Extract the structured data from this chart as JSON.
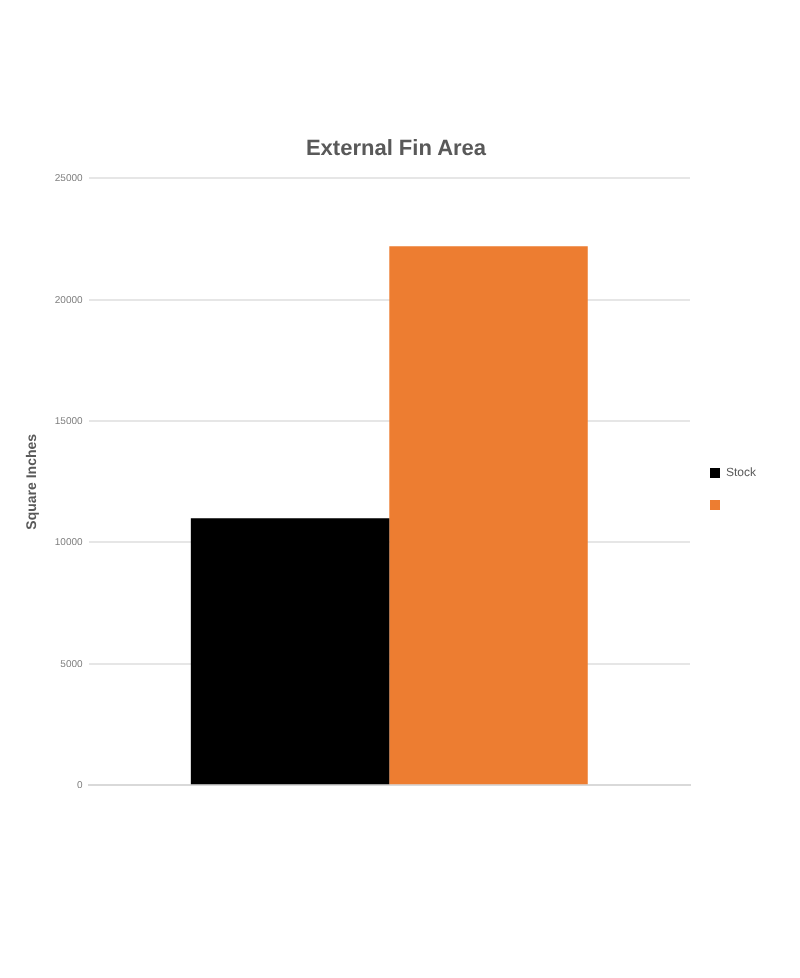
{
  "chart_data": {
    "type": "bar",
    "title": "External Fin Area",
    "ylabel": "Square Inches",
    "categories": [
      null
    ],
    "series": [
      {
        "name": "Stock",
        "color": "#000000",
        "values": [
          11000
        ]
      },
      {
        "color": "#ed7d31",
        "values": [
          22200
        ]
      }
    ],
    "ylim": [
      0,
      25000
    ],
    "yticks": [
      0,
      5000,
      10000,
      15000,
      20000,
      25000
    ],
    "grid": "y",
    "legend": "right"
  }
}
